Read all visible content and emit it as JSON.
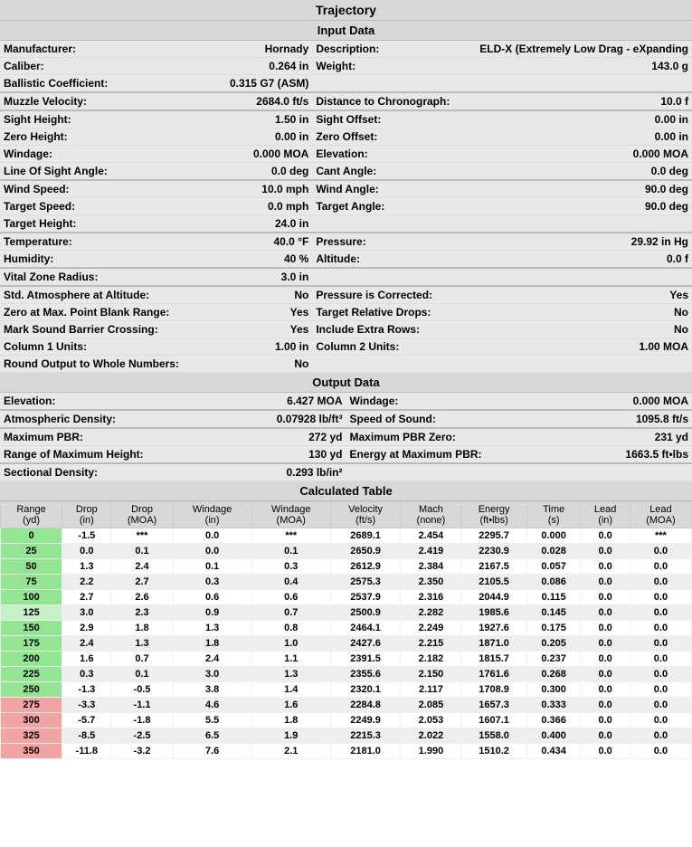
{
  "titles": {
    "trajectory": "Trajectory",
    "input": "Input Data",
    "output": "Output Data",
    "calculated": "Calculated Table"
  },
  "colors": {
    "header_bg": "#d8d8d8",
    "row_alt_bg": "#eeeeee",
    "green": "#92e692",
    "light_green": "#c6f0c6",
    "pink": "#f2a3a3"
  },
  "input_rows": [
    [
      [
        "Manufacturer:",
        "Hornady"
      ],
      [
        "Description:",
        "ELD-X (Extremely Low Drag - eXpanding"
      ]
    ],
    [
      [
        "Caliber:",
        "0.264 in"
      ],
      [
        "Weight:",
        "143.0 g"
      ]
    ],
    [
      [
        "Ballistic Coefficient:",
        "0.315 G7 (ASM)"
      ],
      [
        "",
        ""
      ]
    ],
    [
      [
        "Muzzle Velocity:",
        "2684.0 ft/s"
      ],
      [
        "Distance to Chronograph:",
        "10.0 f"
      ],
      "sep"
    ],
    [
      [
        "Sight Height:",
        "1.50 in"
      ],
      [
        "Sight Offset:",
        "0.00 in"
      ],
      "sep"
    ],
    [
      [
        "Zero Height:",
        "0.00 in"
      ],
      [
        "Zero Offset:",
        "0.00 in"
      ]
    ],
    [
      [
        "Windage:",
        "0.000 MOA"
      ],
      [
        "Elevation:",
        "0.000 MOA"
      ]
    ],
    [
      [
        "Line Of Sight Angle:",
        "0.0 deg"
      ],
      [
        "Cant Angle:",
        "0.0 deg"
      ]
    ],
    [
      [
        "Wind Speed:",
        "10.0 mph"
      ],
      [
        "Wind Angle:",
        "90.0 deg"
      ],
      "sep"
    ],
    [
      [
        "Target Speed:",
        "0.0 mph"
      ],
      [
        "Target Angle:",
        "90.0 deg"
      ]
    ],
    [
      [
        "Target Height:",
        "24.0 in"
      ],
      [
        "",
        ""
      ]
    ],
    [
      [
        "Temperature:",
        "40.0 °F"
      ],
      [
        "Pressure:",
        "29.92 in Hg"
      ],
      "sep"
    ],
    [
      [
        "Humidity:",
        "40 %"
      ],
      [
        "Altitude:",
        "0.0 f"
      ]
    ],
    [
      [
        "Vital Zone Radius:",
        "3.0 in"
      ],
      [
        "",
        ""
      ],
      "sep"
    ],
    [
      [
        "Std. Atmosphere at Altitude:",
        "No"
      ],
      [
        "Pressure is Corrected:",
        "Yes"
      ],
      "sep"
    ],
    [
      [
        "Zero at Max. Point Blank Range:",
        "Yes"
      ],
      [
        "Target Relative Drops:",
        "No"
      ]
    ],
    [
      [
        "Mark Sound Barrier Crossing:",
        "Yes"
      ],
      [
        "Include Extra Rows:",
        "No"
      ]
    ],
    [
      [
        "Column 1 Units:",
        "1.00 in"
      ],
      [
        "Column 2 Units:",
        "1.00 MOA"
      ]
    ],
    [
      [
        "Round Output to Whole Numbers:",
        "No"
      ],
      [
        "",
        ""
      ]
    ]
  ],
  "output_rows": [
    [
      [
        "Elevation:",
        "6.427 MOA"
      ],
      [
        "Windage:",
        "0.000 MOA"
      ]
    ],
    [
      [
        "Atmospheric Density:",
        "0.07928 lb/ft³"
      ],
      [
        "Speed of Sound:",
        "1095.8 ft/s"
      ],
      "sep"
    ],
    [
      [
        "Maximum PBR:",
        "272 yd"
      ],
      [
        "Maximum PBR Zero:",
        "231 yd"
      ],
      "sep"
    ],
    [
      [
        "Range of Maximum Height:",
        "130 yd"
      ],
      [
        "Energy at Maximum PBR:",
        "1663.5 ft•lbs"
      ]
    ],
    [
      [
        "Sectional Density:",
        "0.293 lb/in²"
      ],
      [
        "",
        ""
      ],
      "sep"
    ]
  ],
  "calc": {
    "headers": [
      [
        "Range",
        "(yd)"
      ],
      [
        "Drop",
        "(in)"
      ],
      [
        "Drop",
        "(MOA)"
      ],
      [
        "Windage",
        "(in)"
      ],
      [
        "Windage",
        "(MOA)"
      ],
      [
        "Velocity",
        "(ft/s)"
      ],
      [
        "Mach",
        "(none)"
      ],
      [
        "Energy",
        "(ft•lbs)"
      ],
      [
        "Time",
        "(s)"
      ],
      [
        "Lead",
        "(in)"
      ],
      [
        "Lead",
        "(MOA)"
      ]
    ],
    "rows": [
      {
        "c": "green",
        "d": [
          "0",
          "-1.5",
          "***",
          "0.0",
          "***",
          "2689.1",
          "2.454",
          "2295.7",
          "0.000",
          "0.0",
          "***"
        ]
      },
      {
        "c": "green",
        "d": [
          "25",
          "0.0",
          "0.1",
          "0.0",
          "0.1",
          "2650.9",
          "2.419",
          "2230.9",
          "0.028",
          "0.0",
          "0.0"
        ]
      },
      {
        "c": "green",
        "d": [
          "50",
          "1.3",
          "2.4",
          "0.1",
          "0.3",
          "2612.9",
          "2.384",
          "2167.5",
          "0.057",
          "0.0",
          "0.0"
        ]
      },
      {
        "c": "green",
        "d": [
          "75",
          "2.2",
          "2.7",
          "0.3",
          "0.4",
          "2575.3",
          "2.350",
          "2105.5",
          "0.086",
          "0.0",
          "0.0"
        ]
      },
      {
        "c": "green",
        "d": [
          "100",
          "2.7",
          "2.6",
          "0.6",
          "0.6",
          "2537.9",
          "2.316",
          "2044.9",
          "0.115",
          "0.0",
          "0.0"
        ]
      },
      {
        "c": "light_green",
        "d": [
          "125",
          "3.0",
          "2.3",
          "0.9",
          "0.7",
          "2500.9",
          "2.282",
          "1985.6",
          "0.145",
          "0.0",
          "0.0"
        ]
      },
      {
        "c": "green",
        "d": [
          "150",
          "2.9",
          "1.8",
          "1.3",
          "0.8",
          "2464.1",
          "2.249",
          "1927.6",
          "0.175",
          "0.0",
          "0.0"
        ]
      },
      {
        "c": "green",
        "d": [
          "175",
          "2.4",
          "1.3",
          "1.8",
          "1.0",
          "2427.6",
          "2.215",
          "1871.0",
          "0.205",
          "0.0",
          "0.0"
        ]
      },
      {
        "c": "green",
        "d": [
          "200",
          "1.6",
          "0.7",
          "2.4",
          "1.1",
          "2391.5",
          "2.182",
          "1815.7",
          "0.237",
          "0.0",
          "0.0"
        ]
      },
      {
        "c": "green",
        "d": [
          "225",
          "0.3",
          "0.1",
          "3.0",
          "1.3",
          "2355.6",
          "2.150",
          "1761.6",
          "0.268",
          "0.0",
          "0.0"
        ]
      },
      {
        "c": "green",
        "d": [
          "250",
          "-1.3",
          "-0.5",
          "3.8",
          "1.4",
          "2320.1",
          "2.117",
          "1708.9",
          "0.300",
          "0.0",
          "0.0"
        ]
      },
      {
        "c": "pink",
        "d": [
          "275",
          "-3.3",
          "-1.1",
          "4.6",
          "1.6",
          "2284.8",
          "2.085",
          "1657.3",
          "0.333",
          "0.0",
          "0.0"
        ]
      },
      {
        "c": "pink",
        "d": [
          "300",
          "-5.7",
          "-1.8",
          "5.5",
          "1.8",
          "2249.9",
          "2.053",
          "1607.1",
          "0.366",
          "0.0",
          "0.0"
        ]
      },
      {
        "c": "pink",
        "d": [
          "325",
          "-8.5",
          "-2.5",
          "6.5",
          "1.9",
          "2215.3",
          "2.022",
          "1558.0",
          "0.400",
          "0.0",
          "0.0"
        ]
      },
      {
        "c": "pink",
        "d": [
          "350",
          "-11.8",
          "-3.2",
          "7.6",
          "2.1",
          "2181.0",
          "1.990",
          "1510.2",
          "0.434",
          "0.0",
          "0.0"
        ]
      }
    ]
  }
}
